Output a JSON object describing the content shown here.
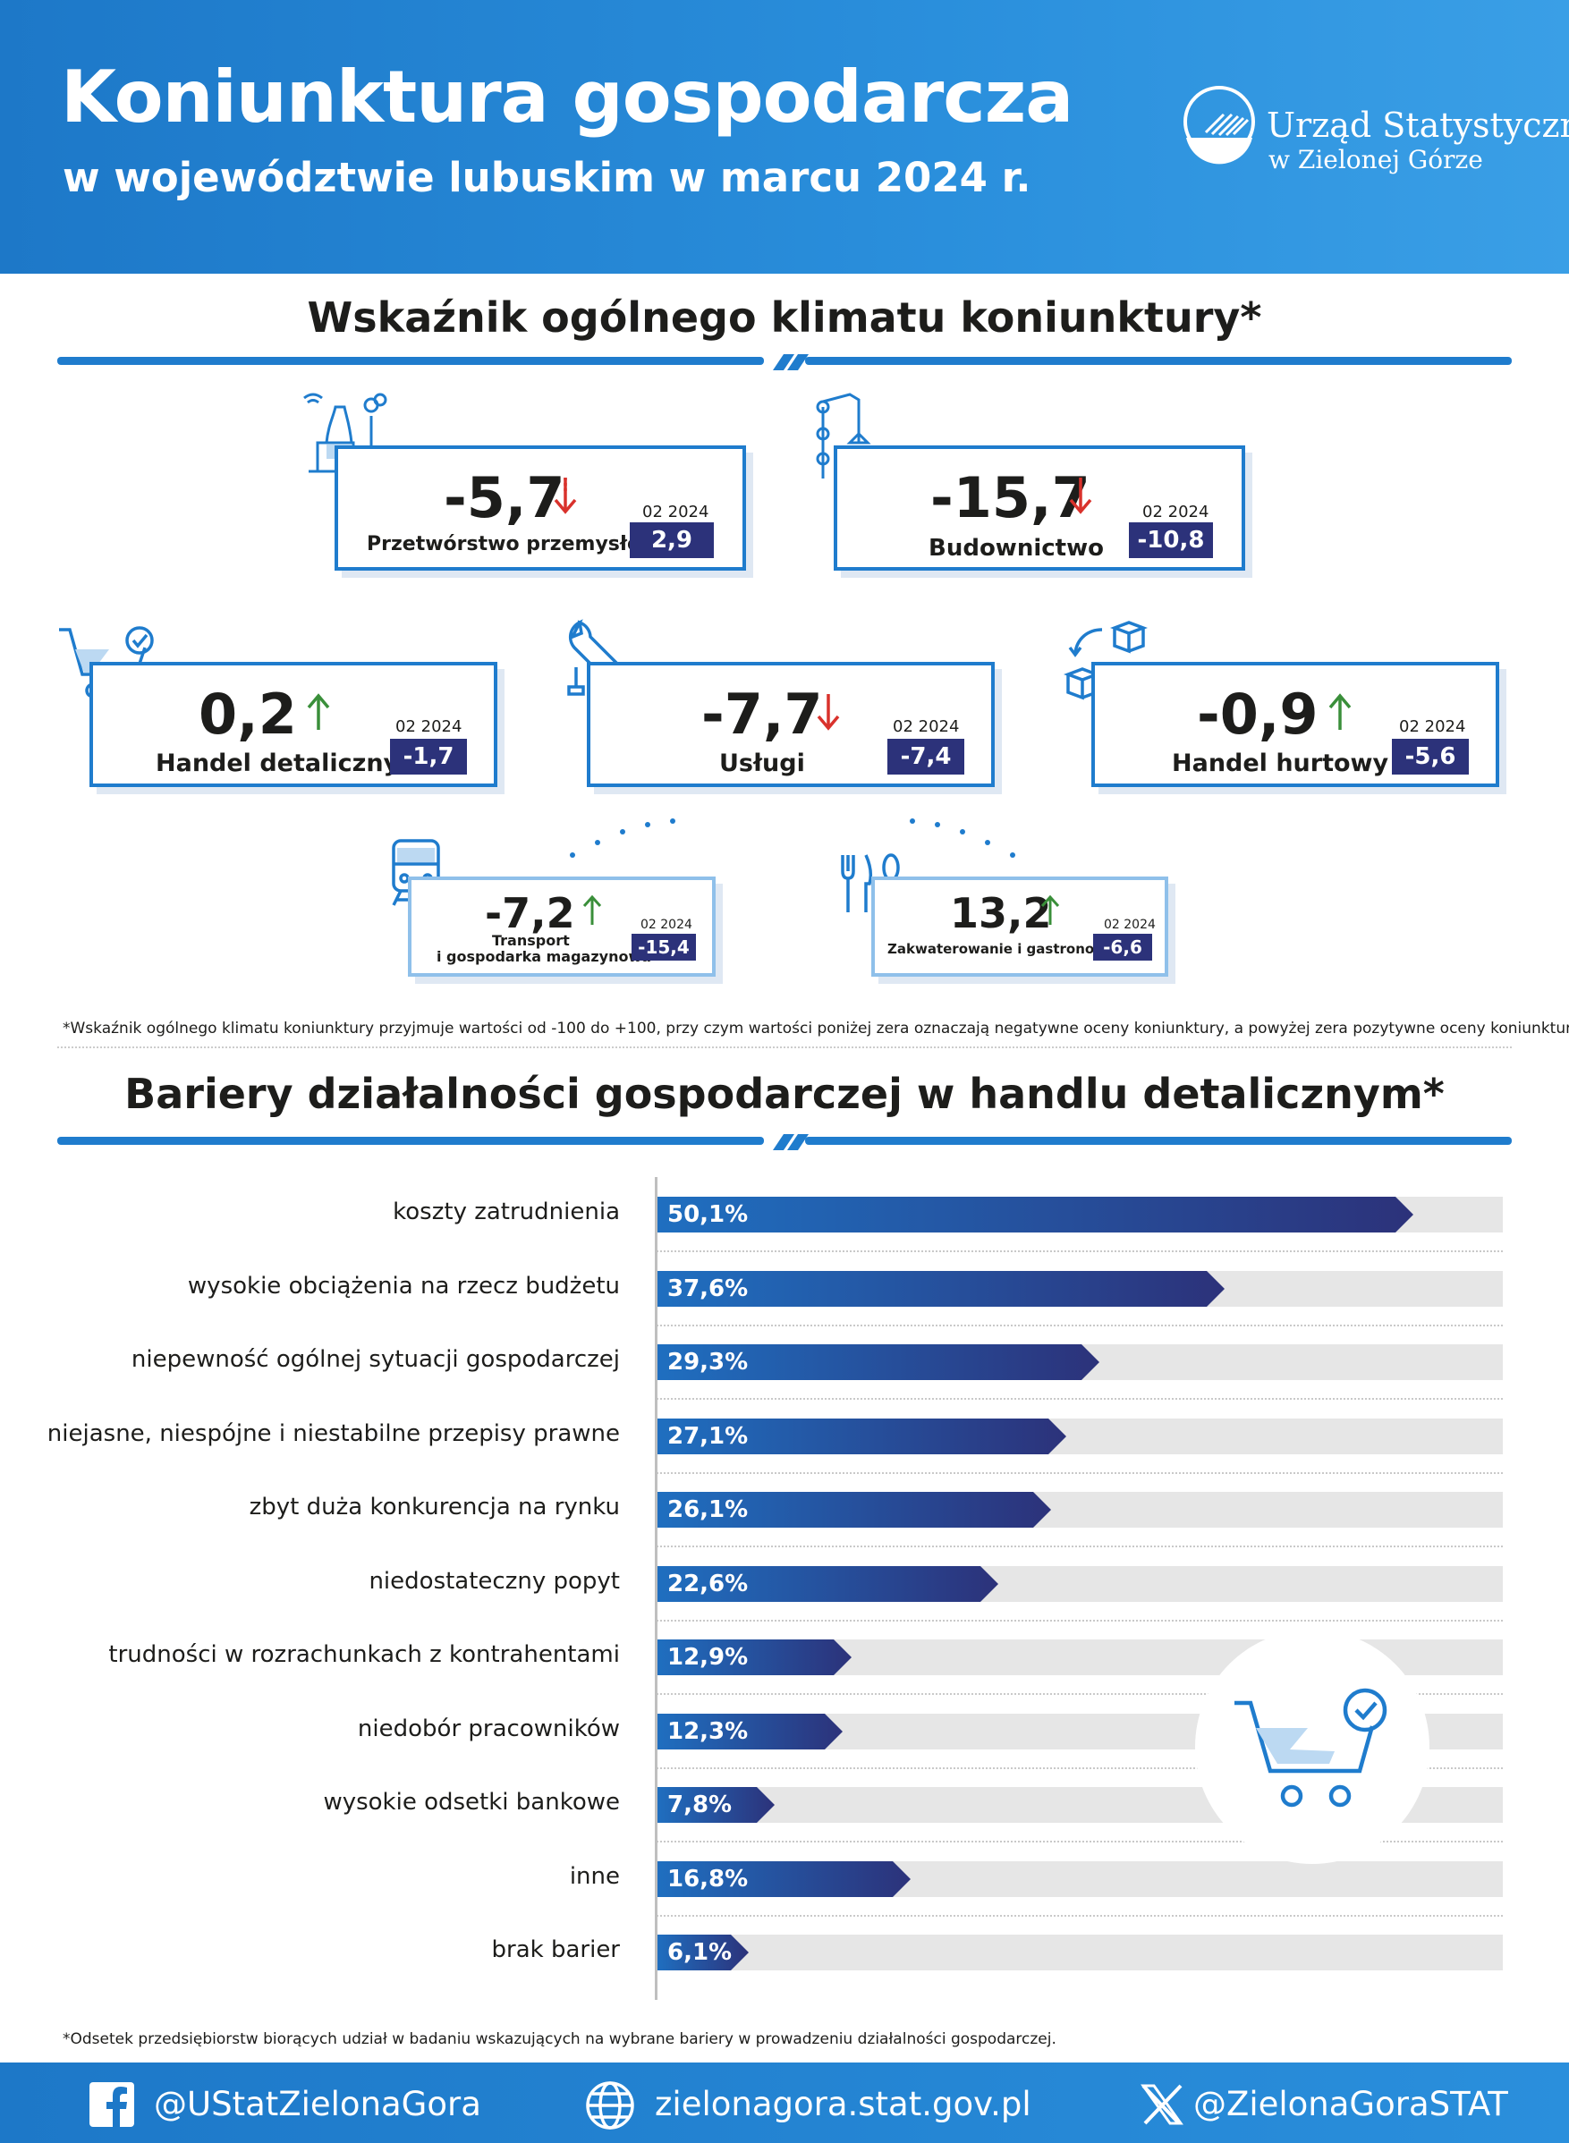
{
  "header": {
    "title": "Koniunktura gospodarcza",
    "subtitle": "w województwie lubuskim w marcu 2024 r.",
    "logo_line1": "Urząd Statystyczny",
    "logo_line2": "w Zielonej Górze"
  },
  "climate": {
    "heading": "Wskaźnik ogólnego klimatu koniunktury*",
    "cards": [
      {
        "label": "Przetwórstwo przemysłowe",
        "value": "-5,7",
        "trend": "down",
        "prev_label": "02 2024",
        "prev_value": "2,9",
        "icon": "factory-icon"
      },
      {
        "label": "Budownictwo",
        "value": "-15,7",
        "trend": "down",
        "prev_label": "02 2024",
        "prev_value": "-10,8",
        "icon": "crane-icon"
      },
      {
        "label": "Handel detaliczny",
        "value": "0,2",
        "trend": "up",
        "prev_label": "02 2024",
        "prev_value": "-1,7",
        "icon": "shopping-cart-icon"
      },
      {
        "label": "Usługi",
        "value": "-7,7",
        "trend": "down",
        "prev_label": "02 2024",
        "prev_value": "-7,4",
        "icon": "wrench-icon"
      },
      {
        "label": "Handel hurtowy",
        "value": "-0,9",
        "trend": "up",
        "prev_label": "02 2024",
        "prev_value": "-5,6",
        "icon": "boxes-cycle-icon"
      },
      {
        "label_line1": "Transport",
        "label_line2": "i gospodarka magazynowa",
        "value": "-7,2",
        "trend": "up",
        "prev_label": "02 2024",
        "prev_value": "-15,4",
        "icon": "train-icon"
      },
      {
        "label": "Zakwaterowanie i gastronomia",
        "value": "13,2",
        "trend": "up",
        "prev_label": "02 2024",
        "prev_value": "-6,6",
        "icon": "cutlery-icon"
      }
    ],
    "note": "*Wskaźnik ogólnego klimatu koniunktury przyjmuje wartości od -100 do +100, przy czym wartości poniżej zera oznaczają negatywne oceny koniunktury, a powyżej zera pozytywne oceny koniunktury."
  },
  "barriers": {
    "heading": "Bariery działalności gospodarczej w handlu detalicznym*",
    "note": "*Odsetek przedsiębiorstw biorących udział w badaniu wskazujących na wybrane bariery w prowadzeniu działalności gospodarczej."
  },
  "chart_data": {
    "type": "bar",
    "orientation": "horizontal",
    "categories": [
      "koszty zatrudnienia",
      "wysokie obciążenia na rzecz budżetu",
      "niepewność ogólnej sytuacji gospodarczej",
      "niejasne, niespójne i niestabilne przepisy prawne",
      "zbyt duża konkurencja na rynku",
      "niedostateczny popyt",
      "trudności w rozrachunkach z kontrahentami",
      "niedobór pracowników",
      "wysokie odsetki bankowe",
      "inne",
      "brak barier"
    ],
    "values": [
      50.1,
      37.6,
      29.3,
      27.1,
      26.1,
      22.6,
      12.9,
      12.3,
      7.8,
      16.8,
      6.1
    ],
    "value_labels": [
      "50,1%",
      "37,6%",
      "29,3%",
      "27,1%",
      "26,1%",
      "22,6%",
      "12,9%",
      "12,3%",
      "7,8%",
      "16,8%",
      "6,1%"
    ],
    "xlim": [
      0,
      56
    ],
    "colors": {
      "bar_start": "#1f6fc0",
      "bar_end": "#2c327a",
      "track": "#e6e6e6"
    }
  },
  "footer": {
    "facebook": "@UStatZielonaGora",
    "website": "zielonagora.stat.gov.pl",
    "x": "@ZielonaGoraSTAT"
  },
  "colors": {
    "accent": "#1f7ccd",
    "dark_navy": "#2c327a",
    "down_arrow": "#d9322c",
    "up_arrow": "#3a8f3a"
  }
}
